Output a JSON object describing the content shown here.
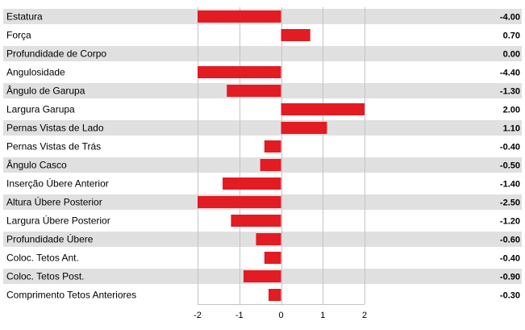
{
  "chart_data": {
    "type": "bar",
    "orientation": "horizontal",
    "categories": [
      "Estatura",
      "Força",
      "Profundidade de Corpo",
      "Angulosidade",
      "Ângulo de Garupa",
      "Largura Garupa",
      "Pernas Vistas de Lado",
      "Pernas Vistas de Trás",
      "Ângulo Casco",
      "Inserção Úbere Anterior",
      "Altura Úbere Posterior",
      "Largura Úbere Posterior",
      "Profundidade Úbere",
      "Coloc. Tetos Ant.",
      "Coloc. Tetos Post.",
      "Comprimento Tetos Anteriores"
    ],
    "values": [
      -4.0,
      0.7,
      0.0,
      -4.4,
      -1.3,
      2.0,
      1.1,
      -0.4,
      -0.5,
      -1.4,
      -2.5,
      -1.2,
      -0.6,
      -0.4,
      -0.9,
      -0.3
    ],
    "value_labels": [
      "-4.00",
      "0.70",
      "0.00",
      "-4.40",
      "-1.30",
      "2.00",
      "1.10",
      "-0.40",
      "-0.50",
      "-1.40",
      "-2.50",
      "-1.20",
      "-0.60",
      "-0.40",
      "-0.90",
      "-0.30"
    ],
    "xlim": [
      -2,
      2
    ],
    "x_ticks": [
      "-2",
      "-1",
      "0",
      "1",
      "2"
    ],
    "grid": true,
    "bar_color": "#e31b23",
    "stripe_color": "#e0e0e0",
    "title": "",
    "xlabel": "",
    "ylabel": ""
  }
}
